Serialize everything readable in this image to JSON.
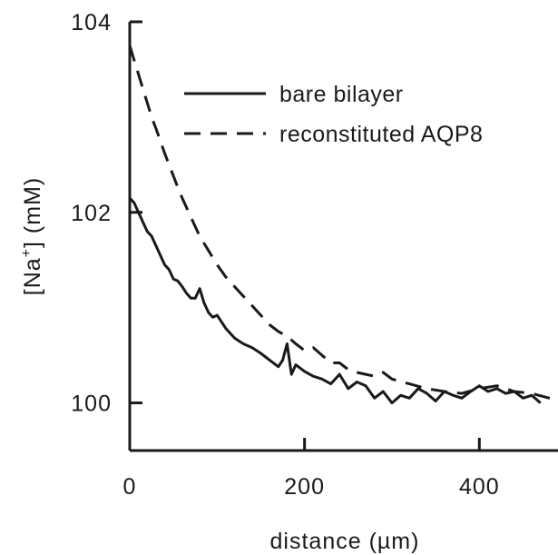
{
  "chart_data": {
    "type": "line",
    "xlabel": "distance (µm)",
    "ylabel_prefix": "[Na",
    "ylabel_sup": "+",
    "ylabel_suffix": "] (mM)",
    "xlim": [
      0,
      490
    ],
    "ylim": [
      99.5,
      104
    ],
    "xticks": [
      0,
      200,
      400
    ],
    "xtick_labels": [
      "0",
      "200",
      "400"
    ],
    "yticks": [
      100,
      102,
      104
    ],
    "ytick_labels": [
      "100",
      "102",
      "104"
    ],
    "grid": false,
    "legend_position": "top-right",
    "series": [
      {
        "name": "bare bilayer",
        "style": "solid",
        "color": "#1a1a1a",
        "x": [
          0,
          5,
          10,
          15,
          20,
          25,
          30,
          35,
          40,
          45,
          50,
          55,
          60,
          65,
          70,
          75,
          80,
          85,
          90,
          95,
          100,
          110,
          120,
          130,
          140,
          150,
          160,
          170,
          175,
          180,
          185,
          190,
          200,
          210,
          220,
          230,
          240,
          250,
          260,
          270,
          280,
          290,
          300,
          310,
          320,
          330,
          340,
          350,
          360,
          370,
          380,
          390,
          400,
          410,
          420,
          430,
          440,
          450,
          460,
          470
        ],
        "y": [
          102.15,
          102.1,
          102.0,
          101.9,
          101.8,
          101.75,
          101.65,
          101.55,
          101.45,
          101.4,
          101.3,
          101.28,
          101.22,
          101.15,
          101.1,
          101.1,
          101.2,
          101.05,
          100.95,
          100.9,
          100.92,
          100.78,
          100.68,
          100.62,
          100.58,
          100.52,
          100.45,
          100.38,
          100.45,
          100.62,
          100.3,
          100.4,
          100.33,
          100.28,
          100.25,
          100.2,
          100.3,
          100.15,
          100.22,
          100.18,
          100.05,
          100.12,
          100.0,
          100.08,
          100.05,
          100.15,
          100.1,
          100.02,
          100.12,
          100.08,
          100.05,
          100.12,
          100.18,
          100.12,
          100.15,
          100.1,
          100.12,
          100.05,
          100.08,
          100.0
        ]
      },
      {
        "name": "reconstituted AQP8",
        "style": "dashed",
        "color": "#1a1a1a",
        "x": [
          0,
          5,
          10,
          15,
          20,
          25,
          30,
          35,
          40,
          45,
          50,
          55,
          60,
          65,
          70,
          75,
          80,
          90,
          100,
          110,
          120,
          130,
          140,
          150,
          160,
          170,
          180,
          190,
          200,
          210,
          220,
          230,
          240,
          250,
          260,
          270,
          280,
          290,
          300,
          320,
          340,
          360,
          380,
          400,
          420,
          440,
          460,
          480,
          490
        ],
        "y": [
          103.75,
          103.6,
          103.45,
          103.3,
          103.15,
          103.0,
          102.88,
          102.75,
          102.62,
          102.5,
          102.38,
          102.26,
          102.15,
          102.05,
          101.95,
          101.85,
          101.75,
          101.6,
          101.45,
          101.32,
          101.22,
          101.12,
          101.02,
          100.92,
          100.82,
          100.75,
          100.7,
          100.62,
          100.55,
          100.58,
          100.5,
          100.42,
          100.42,
          100.35,
          100.32,
          100.3,
          100.28,
          100.32,
          100.25,
          100.2,
          100.15,
          100.12,
          100.1,
          100.15,
          100.18,
          100.12,
          100.1,
          100.05,
          100.02
        ]
      }
    ]
  }
}
